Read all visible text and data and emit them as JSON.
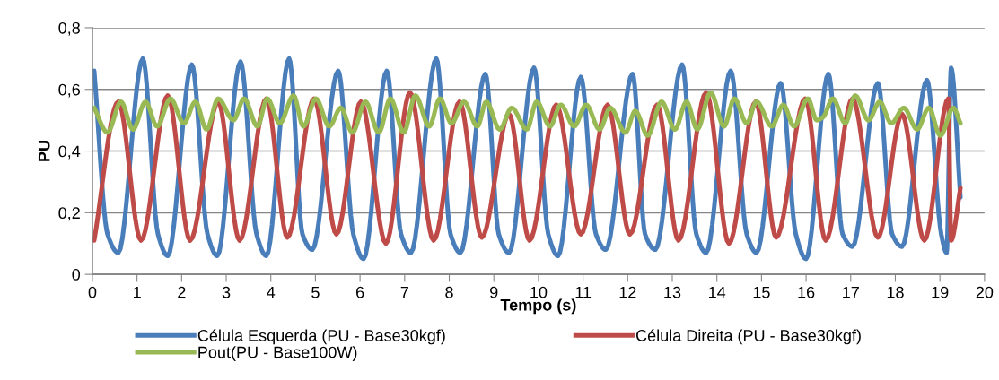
{
  "chart_data": {
    "type": "line",
    "xlabel": "Tempo (s)",
    "ylabel": "PU",
    "xlim": [
      0,
      20
    ],
    "xticks": [
      0,
      1,
      2,
      3,
      4,
      5,
      6,
      7,
      8,
      9,
      10,
      11,
      12,
      13,
      14,
      15,
      16,
      17,
      18,
      19,
      20
    ],
    "ylim": [
      0,
      0.8
    ],
    "yticks": [
      {
        "value": 0,
        "label": "0"
      },
      {
        "value": 0.2,
        "label": "0,2"
      },
      {
        "value": 0.4,
        "label": "0,4"
      },
      {
        "value": 0.6,
        "label": "0,6"
      },
      {
        "value": 0.8,
        "label": "0,8"
      }
    ],
    "grid": "y",
    "legend": "bottom",
    "marker": "none",
    "line_style": "solid",
    "series": [
      {
        "name": "Célula Esquerda (PU - Base30kgf)",
        "color": "#4a7ebb",
        "x": [
          0.04,
          0.34,
          0.58,
          1.13,
          1.47,
          1.69,
          2.23,
          2.58,
          2.8,
          3.32,
          3.68,
          3.9,
          4.41,
          4.71,
          4.93,
          5.51,
          5.85,
          6.08,
          6.6,
          6.92,
          7.14,
          7.71,
          8.03,
          8.25,
          8.81,
          9.11,
          9.34,
          9.9,
          10.22,
          10.44,
          10.95,
          11.29,
          11.51,
          12.11,
          12.39,
          12.62,
          13.22,
          13.54,
          13.76,
          14.31,
          14.67,
          14.89,
          15.43,
          15.77,
          16.0,
          16.5,
          16.82,
          17.04,
          17.61,
          17.93,
          18.15,
          18.71,
          19.03,
          19.15,
          19.25,
          19.46
        ],
        "values": [
          0.66,
          0.13,
          0.07,
          0.7,
          0.13,
          0.06,
          0.68,
          0.13,
          0.06,
          0.69,
          0.13,
          0.06,
          0.7,
          0.13,
          0.08,
          0.66,
          0.13,
          0.05,
          0.66,
          0.13,
          0.07,
          0.7,
          0.13,
          0.07,
          0.65,
          0.13,
          0.07,
          0.67,
          0.13,
          0.06,
          0.64,
          0.13,
          0.08,
          0.65,
          0.13,
          0.08,
          0.68,
          0.13,
          0.07,
          0.66,
          0.13,
          0.07,
          0.62,
          0.13,
          0.05,
          0.65,
          0.13,
          0.09,
          0.62,
          0.13,
          0.09,
          0.63,
          0.13,
          0.07,
          0.67,
          0.25
        ]
      },
      {
        "name": "Célula Direita (PU - Base30kgf)",
        "color": "#be4b48",
        "x": [
          0.04,
          0.58,
          1.09,
          1.69,
          2.19,
          2.82,
          3.3,
          3.9,
          4.37,
          4.97,
          5.47,
          6.02,
          6.58,
          7.12,
          7.65,
          8.23,
          8.73,
          9.34,
          9.8,
          10.4,
          10.95,
          11.55,
          12.05,
          12.66,
          13.14,
          13.76,
          14.27,
          14.87,
          15.33,
          15.98,
          16.44,
          17.04,
          17.61,
          18.15,
          18.65,
          19.19,
          19.25,
          19.46
        ],
        "values": [
          0.11,
          0.56,
          0.11,
          0.58,
          0.11,
          0.56,
          0.11,
          0.57,
          0.12,
          0.57,
          0.13,
          0.56,
          0.1,
          0.59,
          0.11,
          0.56,
          0.12,
          0.52,
          0.11,
          0.55,
          0.13,
          0.55,
          0.13,
          0.55,
          0.11,
          0.59,
          0.1,
          0.56,
          0.12,
          0.57,
          0.11,
          0.57,
          0.12,
          0.52,
          0.11,
          0.57,
          0.11,
          0.28
        ]
      },
      {
        "name": "Pout(PU - Base100W)",
        "color": "#98b954",
        "x": [
          0.04,
          0.34,
          0.64,
          0.91,
          1.19,
          1.45,
          1.75,
          2.05,
          2.31,
          2.56,
          2.82,
          3.16,
          3.4,
          3.7,
          3.92,
          4.2,
          4.51,
          4.73,
          5.01,
          5.31,
          5.57,
          5.83,
          6.12,
          6.42,
          6.68,
          6.98,
          7.24,
          7.55,
          7.79,
          8.05,
          8.33,
          8.63,
          8.83,
          9.13,
          9.4,
          9.74,
          9.96,
          10.26,
          10.5,
          10.8,
          11.07,
          11.37,
          11.61,
          11.95,
          12.17,
          12.45,
          12.76,
          13.06,
          13.32,
          13.56,
          13.86,
          14.16,
          14.39,
          14.67,
          14.89,
          15.23,
          15.49,
          15.73,
          16.04,
          16.24,
          16.38,
          16.6,
          16.88,
          17.1,
          17.4,
          17.65,
          17.91,
          18.19,
          18.49,
          18.75,
          19.01,
          19.3,
          19.46
        ],
        "values": [
          0.54,
          0.46,
          0.56,
          0.47,
          0.56,
          0.48,
          0.57,
          0.49,
          0.56,
          0.47,
          0.57,
          0.5,
          0.57,
          0.48,
          0.57,
          0.49,
          0.58,
          0.48,
          0.57,
          0.48,
          0.54,
          0.46,
          0.56,
          0.46,
          0.57,
          0.46,
          0.58,
          0.48,
          0.57,
          0.49,
          0.56,
          0.48,
          0.56,
          0.47,
          0.54,
          0.47,
          0.56,
          0.48,
          0.55,
          0.48,
          0.55,
          0.47,
          0.54,
          0.46,
          0.53,
          0.45,
          0.56,
          0.47,
          0.56,
          0.47,
          0.59,
          0.48,
          0.57,
          0.49,
          0.56,
          0.48,
          0.55,
          0.48,
          0.57,
          0.5,
          0.51,
          0.57,
          0.49,
          0.58,
          0.5,
          0.56,
          0.49,
          0.54,
          0.47,
          0.54,
          0.45,
          0.54,
          0.49
        ]
      }
    ]
  }
}
